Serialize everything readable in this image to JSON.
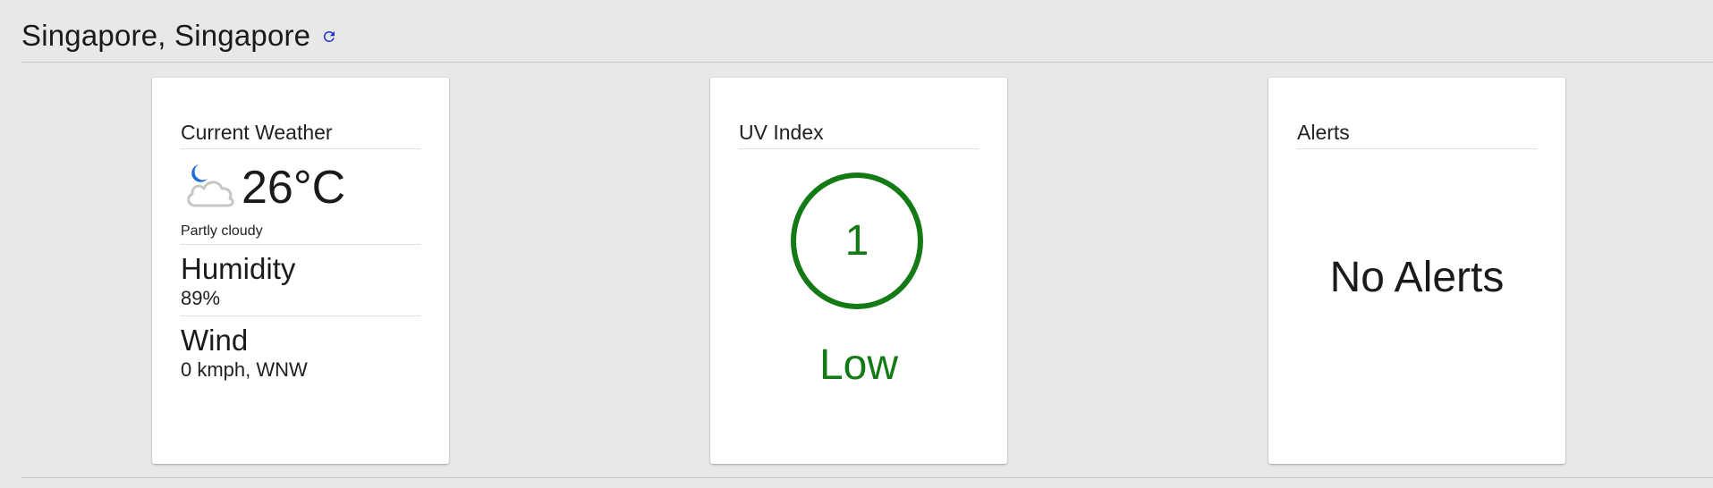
{
  "location": {
    "title": "Singapore, Singapore"
  },
  "weather": {
    "title": "Current Weather",
    "icon": "partly-cloudy-night-icon",
    "temperature": "26°C",
    "condition": "Partly cloudy",
    "humidity_label": "Humidity",
    "humidity_value": "89%",
    "wind_label": "Wind",
    "wind_value": "0 kmph, WNW"
  },
  "uv": {
    "title": "UV Index",
    "value": "1",
    "level": "Low",
    "color": "#137a16"
  },
  "alerts": {
    "title": "Alerts",
    "message": "No Alerts"
  },
  "colors": {
    "background": "#e8e8e8",
    "card": "#ffffff",
    "refresh_icon": "#1e2fd6",
    "moon": "#1f6fd6",
    "uv_low": "#137a16"
  }
}
